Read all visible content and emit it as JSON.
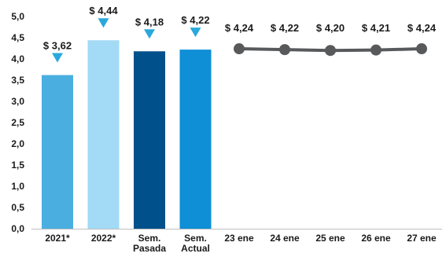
{
  "chart_data": {
    "type": "bar",
    "title": "",
    "xlabel": "",
    "ylabel": "",
    "ylim": [
      0,
      5.0
    ],
    "yticks": [
      "0,0",
      "0,5",
      "1,0",
      "1,5",
      "2,0",
      "2,5",
      "3,0",
      "3,5",
      "4,0",
      "4,5",
      "5,0"
    ],
    "grid": false,
    "legend": "none",
    "bars": [
      {
        "label": [
          "2021*"
        ],
        "value": 3.62,
        "value_label": "$ 3,62",
        "color": "#4aaee0"
      },
      {
        "label": [
          "2022*"
        ],
        "value": 4.44,
        "value_label": "$ 4,44",
        "color": "#a3daf5"
      },
      {
        "label": [
          "Sem.",
          "Pasada"
        ],
        "value": 4.18,
        "value_label": "$ 4,18",
        "color": "#00508c"
      },
      {
        "label": [
          "Sem.",
          "Actual"
        ],
        "value": 4.22,
        "value_label": "$ 4,22",
        "color": "#0e8fd6"
      }
    ],
    "marker_color": "#2aa8dc",
    "line_series": {
      "color": "#58595b",
      "points": [
        {
          "label": "23 ene",
          "value": 4.24,
          "value_label": "$ 4,24"
        },
        {
          "label": "24 ene",
          "value": 4.22,
          "value_label": "$ 4,22"
        },
        {
          "label": "25 ene",
          "value": 4.2,
          "value_label": "$ 4,20"
        },
        {
          "label": "26 ene",
          "value": 4.21,
          "value_label": "$ 4,21"
        },
        {
          "label": "27 ene",
          "value": 4.24,
          "value_label": "$ 4,24"
        }
      ]
    }
  }
}
